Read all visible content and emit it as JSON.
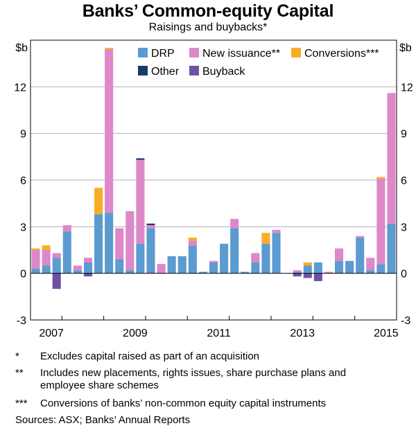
{
  "chart_data": {
    "type": "bar",
    "stacked": true,
    "title": "Banks’ Common-equity Capital",
    "subtitle": "Raisings and buybacks*",
    "ylabel_left": "$b",
    "ylabel_right": "$b",
    "ylim": [
      -3,
      15
    ],
    "yticks": [
      -3,
      0,
      3,
      6,
      9,
      12
    ],
    "x_tick_labels": [
      "2007",
      "2009",
      "2011",
      "2013",
      "2015"
    ],
    "x_tick_label_index": [
      1,
      9,
      17,
      25,
      33
    ],
    "year_boundary_index": [
      3,
      7,
      11,
      15,
      19,
      23,
      27,
      31,
      35
    ],
    "legend": [
      "DRP",
      "New issuance**",
      "Conversions***",
      "Other",
      "Buyback"
    ],
    "series": [
      {
        "name": "DRP",
        "color": "#5B9BD0",
        "values": [
          0.3,
          0.5,
          1.0,
          2.7,
          0.2,
          0.7,
          3.8,
          3.9,
          0.9,
          0.2,
          1.9,
          2.9,
          0.0,
          1.1,
          1.1,
          1.8,
          0.1,
          0.7,
          1.9,
          2.9,
          0.1,
          0.7,
          1.9,
          2.6,
          0.0,
          0.1,
          0.5,
          0.7,
          0.0,
          0.8,
          0.8,
          2.3,
          0.2,
          0.6,
          3.2
        ]
      },
      {
        "name": "New issuance**",
        "color": "#DD88C8",
        "values": [
          1.2,
          1.0,
          0.3,
          0.4,
          0.3,
          0.3,
          0.0,
          10.5,
          2.0,
          3.8,
          5.4,
          0.2,
          0.6,
          0.0,
          0.0,
          0.3,
          0.0,
          0.1,
          0.0,
          0.6,
          0.0,
          0.6,
          0.0,
          0.2,
          0.0,
          0.1,
          0.0,
          0.0,
          0.1,
          0.8,
          0.0,
          0.1,
          0.8,
          5.5,
          8.4
        ]
      },
      {
        "name": "Conversions***",
        "color": "#F7AE25",
        "values": [
          0.1,
          0.3,
          0.0,
          0.0,
          0.0,
          0.0,
          1.7,
          0.1,
          0.0,
          0.0,
          0.0,
          0.0,
          0.0,
          0.0,
          0.0,
          0.2,
          0.0,
          0.0,
          0.0,
          0.0,
          0.0,
          0.0,
          0.7,
          0.0,
          0.0,
          0.0,
          0.2,
          0.0,
          0.0,
          0.0,
          0.0,
          0.0,
          0.0,
          0.1,
          0.0
        ]
      },
      {
        "name": "Other",
        "color": "#183E66",
        "values": [
          0.0,
          0.0,
          0.0,
          0.0,
          0.0,
          0.0,
          0.0,
          0.0,
          0.0,
          0.0,
          0.1,
          0.1,
          0.0,
          0.0,
          0.0,
          0.0,
          0.0,
          0.0,
          0.0,
          0.0,
          0.0,
          0.0,
          0.0,
          0.0,
          0.0,
          0.0,
          0.0,
          0.0,
          0.0,
          0.0,
          0.0,
          0.0,
          0.0,
          0.0,
          0.0
        ]
      },
      {
        "name": "Buyback",
        "color": "#6F51A6",
        "values": [
          0.0,
          0.0,
          -1.0,
          0.0,
          0.0,
          -0.2,
          0.0,
          0.0,
          0.0,
          0.0,
          0.0,
          0.0,
          0.0,
          0.0,
          0.0,
          0.0,
          0.0,
          0.0,
          0.0,
          0.0,
          0.0,
          0.0,
          0.0,
          0.0,
          0.0,
          -0.2,
          -0.3,
          -0.5,
          0.0,
          0.0,
          0.0,
          0.0,
          0.0,
          0.0,
          0.0
        ]
      }
    ]
  },
  "notes": [
    {
      "mark": "*",
      "text": "Excludes capital raised as part of an acquisition"
    },
    {
      "mark": "**",
      "text": "Includes new placements, rights issues, share purchase plans and employee share schemes"
    },
    {
      "mark": "***",
      "text": "Conversions of banks’ non-common equity capital instruments"
    }
  ],
  "sources": "Sources:   ASX; Banks’ Annual Reports"
}
